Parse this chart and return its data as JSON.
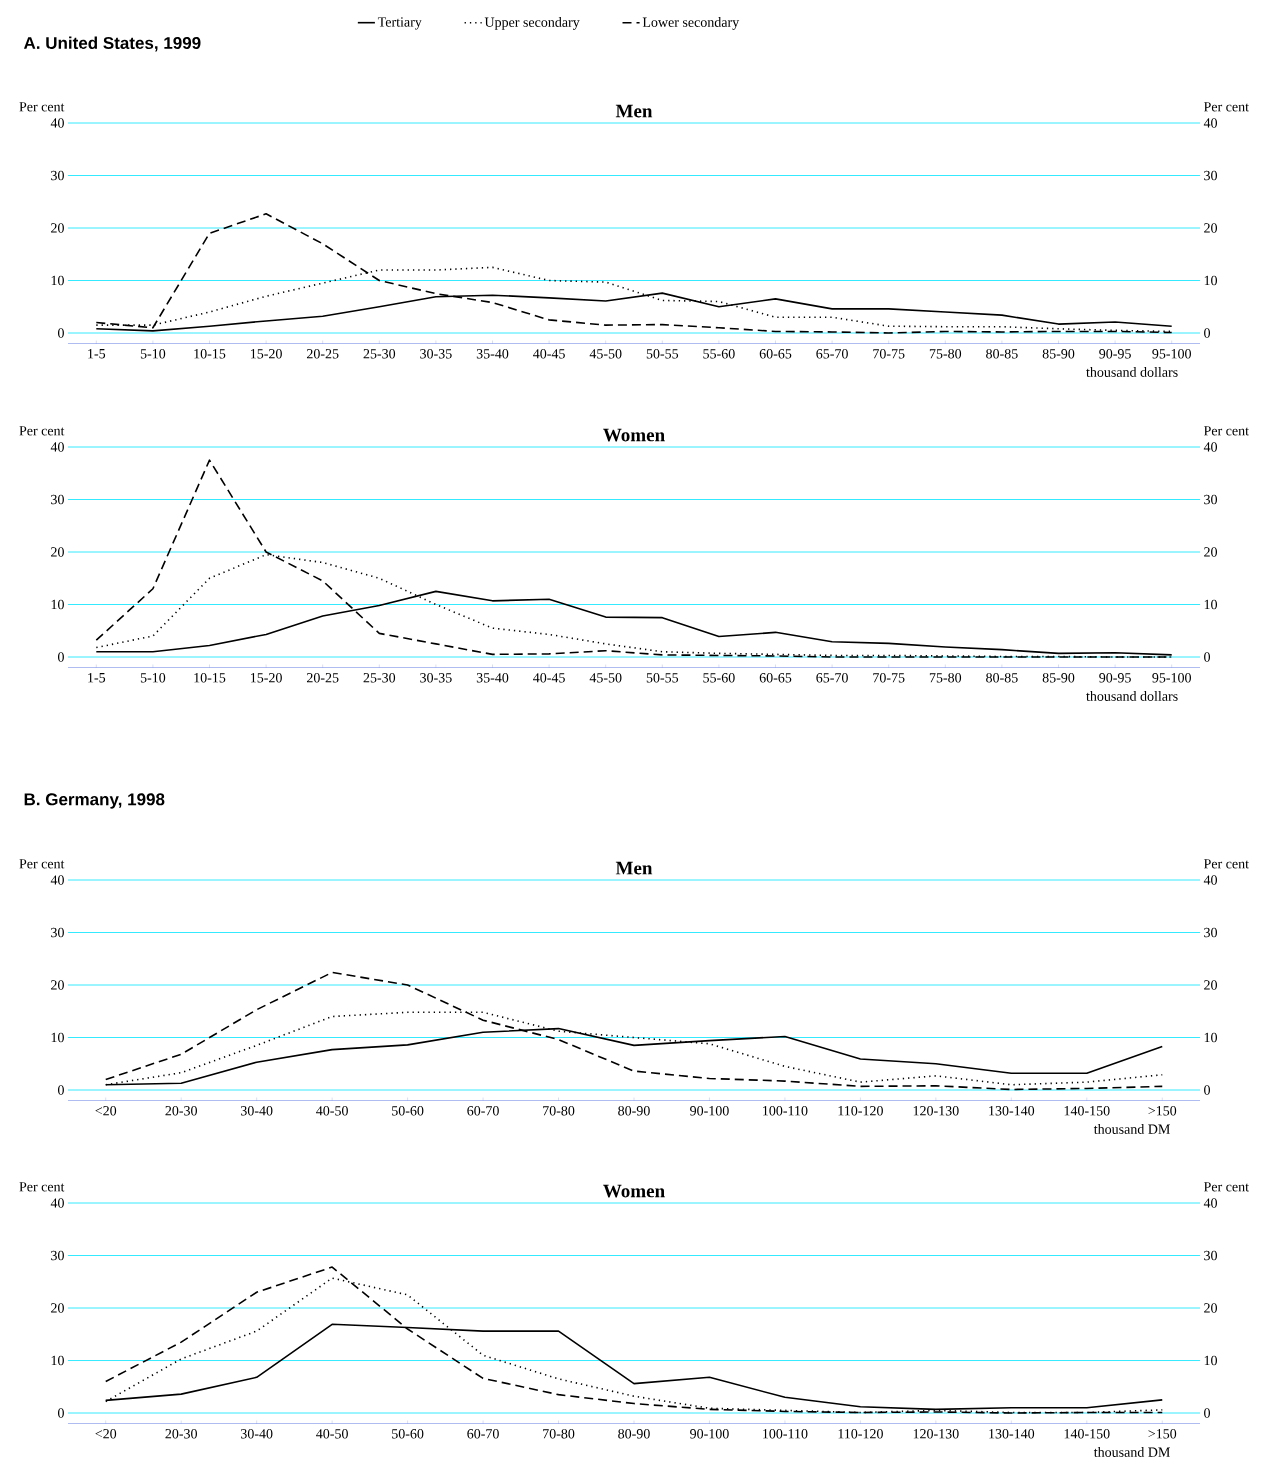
{
  "chart_data": [
    {
      "type": "line",
      "title": "Men",
      "ylabel": "Per cent",
      "y2label": "Per cent",
      "xlabel": "thousand dollars",
      "annotations": [
        "A. United States, 1999"
      ],
      "legend": "top",
      "grid": "y",
      "categories": [
        "1-5",
        "5-10",
        "10-15",
        "15-20",
        "20-25",
        "25-30",
        "30-35",
        "35-40",
        "40-45",
        "45-50",
        "50-55",
        "55-60",
        "60-65",
        "65-70",
        "70-75",
        "75-80",
        "80-85",
        "85-90",
        "90-95",
        "95-100"
      ],
      "ylim": [
        -2,
        40
      ],
      "yticks": [
        0,
        10,
        20,
        30,
        40
      ],
      "y2lim": [
        -2,
        40
      ],
      "y2ticks": [
        0,
        10,
        20,
        30,
        40
      ],
      "series": [
        {
          "name": "Tertiary",
          "color": "#000000",
          "line_style": "solid",
          "values": [
            0.8,
            0.4,
            1.3,
            2.3,
            3.2,
            5.0,
            6.9,
            7.2,
            6.7,
            6.1,
            7.6,
            5.0,
            6.5,
            4.6,
            4.6,
            4.0,
            3.4,
            1.7,
            2.1,
            1.3
          ]
        },
        {
          "name": "Upper secondary",
          "color": "#000000",
          "line_style": "dotted",
          "values": [
            1.5,
            1.5,
            4.0,
            7.0,
            9.5,
            12.0,
            12.0,
            12.5,
            10.0,
            9.7,
            6.2,
            6.0,
            3.0,
            3.0,
            1.3,
            1.2,
            1.2,
            0.8,
            0.5,
            0.3
          ]
        },
        {
          "name": "Lower secondary",
          "color": "#000000",
          "line_style": "dashed",
          "values": [
            2.0,
            1.0,
            19.0,
            22.7,
            17.0,
            10.0,
            7.5,
            5.8,
            2.5,
            1.5,
            1.6,
            1.0,
            0.3,
            0.2,
            0.0,
            0.3,
            0.2,
            0.3,
            0.3,
            0.1
          ]
        }
      ]
    },
    {
      "type": "line",
      "title": "Women",
      "ylabel": "Per cent",
      "y2label": "Per cent",
      "xlabel": "thousand dollars",
      "grid": "y",
      "categories": [
        "1-5",
        "5-10",
        "10-15",
        "15-20",
        "20-25",
        "25-30",
        "30-35",
        "35-40",
        "40-45",
        "45-50",
        "50-55",
        "55-60",
        "60-65",
        "65-70",
        "70-75",
        "75-80",
        "80-85",
        "85-90",
        "90-95",
        "95-100"
      ],
      "ylim": [
        -2,
        40
      ],
      "yticks": [
        0,
        10,
        20,
        30,
        40
      ],
      "y2lim": [
        -2,
        40
      ],
      "y2ticks": [
        0,
        10,
        20,
        30,
        40
      ],
      "series": [
        {
          "color": "#000000",
          "line_style": "solid",
          "values": [
            1.0,
            1.0,
            2.2,
            4.3,
            7.8,
            9.8,
            12.5,
            10.7,
            11.0,
            7.6,
            7.5,
            3.9,
            4.7,
            2.9,
            2.6,
            1.9,
            1.4,
            0.7,
            0.8,
            0.4
          ]
        },
        {
          "color": "#000000",
          "line_style": "dotted",
          "values": [
            1.8,
            4.0,
            15.0,
            19.5,
            18.0,
            15.0,
            10.0,
            5.5,
            4.3,
            2.5,
            1.0,
            0.7,
            0.5,
            0.3,
            0.3,
            0.2,
            0.1,
            0.1,
            0.0,
            0.0
          ]
        },
        {
          "color": "#000000",
          "line_style": "dashed",
          "values": [
            3.2,
            13.0,
            37.5,
            20.0,
            14.5,
            4.5,
            2.5,
            0.5,
            0.6,
            1.2,
            0.4,
            0.3,
            0.2,
            0.0,
            0.0,
            0.0,
            0.0,
            0.0,
            0.0,
            0.0
          ]
        }
      ]
    },
    {
      "type": "line",
      "title": "Men",
      "ylabel": "Per cent",
      "y2label": "Per cent",
      "xlabel": "thousand DM",
      "annotations": [
        "B. Germany, 1998"
      ],
      "grid": "y",
      "categories": [
        "<20",
        "20-30",
        "30-40",
        "40-50",
        "50-60",
        "60-70",
        "70-80",
        "80-90",
        "90-100",
        "100-110",
        "110-120",
        "120-130",
        "130-140",
        "140-150",
        ">150"
      ],
      "ylim": [
        -2,
        40
      ],
      "yticks": [
        0,
        10,
        20,
        30,
        40
      ],
      "y2lim": [
        -2,
        40
      ],
      "y2ticks": [
        0,
        10,
        20,
        30,
        40
      ],
      "series": [
        {
          "color": "#000000",
          "line_style": "solid",
          "values": [
            1.0,
            1.3,
            5.3,
            7.7,
            8.6,
            11.0,
            11.7,
            8.5,
            9.4,
            10.2,
            5.9,
            5.0,
            3.2,
            3.2,
            8.3
          ]
        },
        {
          "color": "#000000",
          "line_style": "dotted",
          "values": [
            1.0,
            3.3,
            8.5,
            14.0,
            14.8,
            14.8,
            11.2,
            10.0,
            8.8,
            4.5,
            1.5,
            2.7,
            1.0,
            1.5,
            2.9
          ]
        },
        {
          "color": "#000000",
          "line_style": "dashed",
          "values": [
            2.0,
            6.8,
            15.3,
            22.4,
            20.0,
            13.3,
            9.6,
            3.6,
            2.2,
            1.7,
            0.7,
            0.8,
            0.1,
            0.3,
            0.7
          ]
        }
      ]
    },
    {
      "type": "line",
      "title": "Women",
      "ylabel": "Per cent",
      "y2label": "Per cent",
      "xlabel": "thousand DM",
      "grid": "y",
      "categories": [
        "<20",
        "20-30",
        "30-40",
        "40-50",
        "50-60",
        "60-70",
        "70-80",
        "80-90",
        "90-100",
        "100-110",
        "110-120",
        "120-130",
        "130-140",
        "140-150",
        ">150"
      ],
      "ylim": [
        -2,
        40
      ],
      "yticks": [
        0,
        10,
        20,
        30,
        40
      ],
      "y2lim": [
        -2,
        40
      ],
      "y2ticks": [
        0,
        10,
        20,
        30,
        40
      ],
      "series": [
        {
          "color": "#000000",
          "line_style": "solid",
          "values": [
            2.4,
            3.6,
            6.8,
            16.9,
            16.3,
            15.6,
            15.6,
            5.6,
            6.8,
            3.0,
            1.2,
            0.7,
            1.0,
            1.0,
            2.5
          ]
        },
        {
          "color": "#000000",
          "line_style": "dotted",
          "values": [
            2.2,
            10.3,
            15.6,
            25.7,
            22.5,
            11.0,
            6.5,
            3.2,
            0.9,
            0.5,
            0.1,
            0.5,
            0.1,
            0.1,
            0.6
          ]
        },
        {
          "color": "#000000",
          "line_style": "dashed",
          "values": [
            6.0,
            13.5,
            23.0,
            27.8,
            16.0,
            6.6,
            3.5,
            1.8,
            0.7,
            0.3,
            0.1,
            0.2,
            0.0,
            0.1,
            0.1
          ]
        }
      ]
    }
  ]
}
